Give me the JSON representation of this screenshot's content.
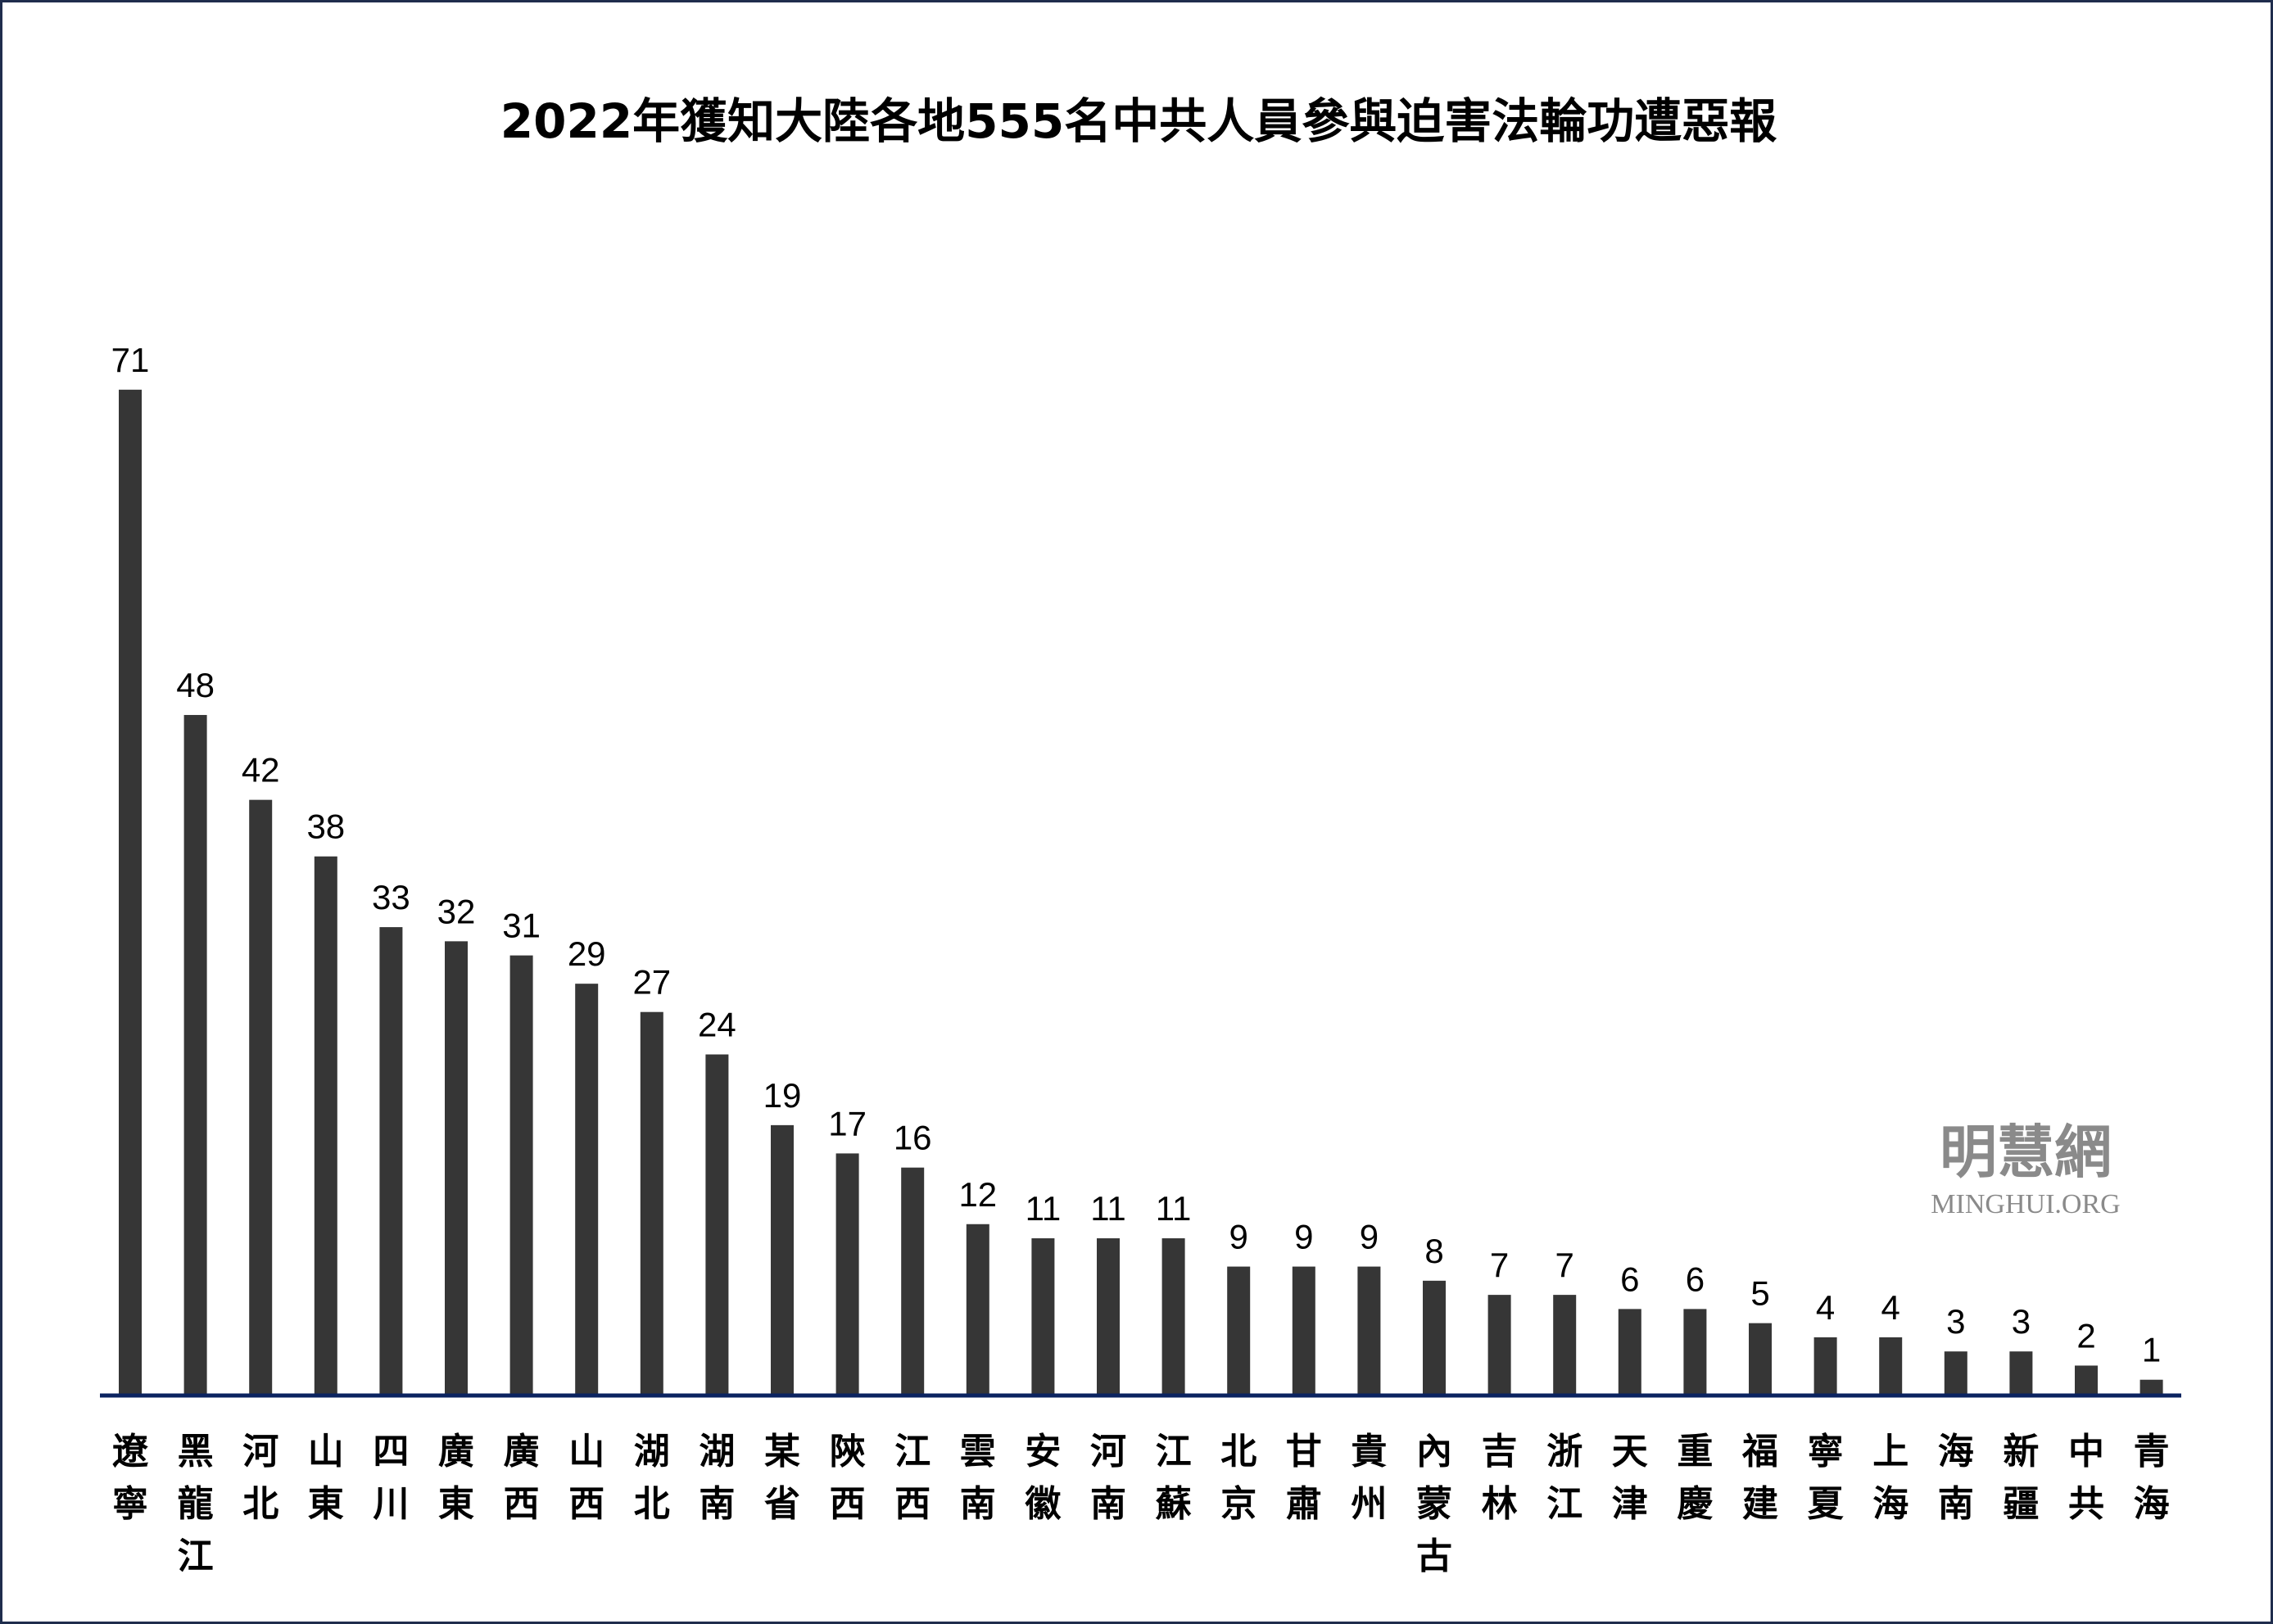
{
  "chart_data": {
    "type": "bar",
    "title": "2022年獲知大陸各地555名中共人員參與迫害法輪功遭惡報",
    "xlabel": "",
    "ylabel": "",
    "ylim": [
      0,
      75
    ],
    "grid": false,
    "bar_color": "#363636",
    "axis_color": "#0b2360",
    "categories": [
      "遼寧",
      "黑龍江",
      "河北",
      "山東",
      "四川",
      "廣東",
      "廣西",
      "山西",
      "湖北",
      "湖南",
      "某省",
      "陝西",
      "江西",
      "雲南",
      "安徽",
      "河南",
      "江蘇",
      "北京",
      "甘肅",
      "貴州",
      "內蒙古",
      "吉林",
      "浙江",
      "天津",
      "重慶",
      "福建",
      "寧夏",
      "上海",
      "海南",
      "新疆",
      "中共",
      "青海"
    ],
    "values": [
      71,
      48,
      42,
      38,
      33,
      32,
      31,
      29,
      27,
      24,
      19,
      17,
      16,
      12,
      11,
      11,
      11,
      9,
      9,
      9,
      8,
      7,
      7,
      6,
      6,
      5,
      4,
      4,
      3,
      3,
      2,
      1
    ]
  },
  "watermark": {
    "chinese": "明慧網",
    "latin": "MINGHUI.ORG"
  }
}
